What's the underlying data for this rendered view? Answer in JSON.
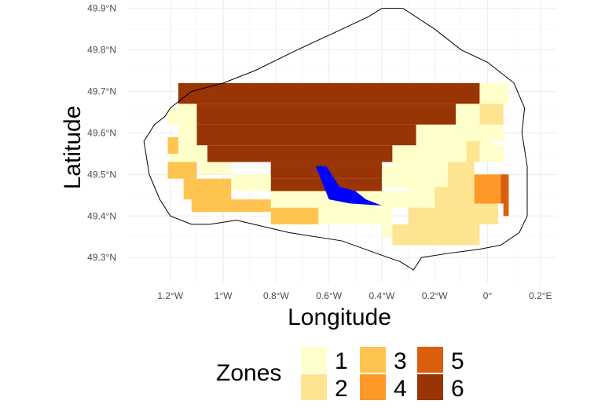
{
  "chart_data": {
    "type": "heatmap",
    "title": "",
    "xlabel": "Longitude",
    "ylabel": "Latitude",
    "xlim": [
      -1.36,
      0.26
    ],
    "ylim": [
      49.24,
      49.92
    ],
    "x_ticks": [
      {
        "value": -1.2,
        "label": "1.2°W"
      },
      {
        "value": -1.0,
        "label": "1°W"
      },
      {
        "value": -0.8,
        "label": "0.8°W"
      },
      {
        "value": -0.6,
        "label": "0.6°W"
      },
      {
        "value": -0.4,
        "label": "0.4°W"
      },
      {
        "value": -0.2,
        "label": "0.2°W"
      },
      {
        "value": 0.0,
        "label": "0°"
      },
      {
        "value": 0.2,
        "label": "0.2°E"
      }
    ],
    "y_ticks": [
      {
        "value": 49.3,
        "label": "49.3°N"
      },
      {
        "value": 49.4,
        "label": "49.4°N"
      },
      {
        "value": 49.5,
        "label": "49.5°N"
      },
      {
        "value": 49.6,
        "label": "49.6°N"
      },
      {
        "value": 49.7,
        "label": "49.7°N"
      },
      {
        "value": 49.8,
        "label": "49.8°N"
      },
      {
        "value": 49.9,
        "label": "49.9°N"
      }
    ],
    "grid": true,
    "legend": {
      "title": "Zones",
      "placement": "bottom",
      "entries": [
        {
          "zone": 1,
          "label": "1",
          "color": "#FFFFCC"
        },
        {
          "zone": 2,
          "label": "2",
          "color": "#FEE391"
        },
        {
          "zone": 3,
          "label": "3",
          "color": "#FEC44F"
        },
        {
          "zone": 4,
          "label": "4",
          "color": "#FE9929"
        },
        {
          "zone": 5,
          "label": "5",
          "color": "#D95F0E"
        },
        {
          "zone": 6,
          "label": "6",
          "color": "#993404"
        }
      ]
    },
    "zones": [
      {
        "zone": 6,
        "cells": [
          [
            -1.17,
            49.67,
            -0.03,
            49.72
          ],
          [
            -1.17,
            49.62,
            -0.12,
            49.67
          ],
          [
            -1.1,
            49.57,
            -0.27,
            49.62
          ],
          [
            -1.06,
            49.53,
            -0.36,
            49.57
          ],
          [
            -0.82,
            49.49,
            -0.4,
            49.53
          ],
          [
            -0.82,
            49.46,
            -0.4,
            49.49
          ]
        ]
      },
      {
        "zone": 1,
        "cells": [
          [
            -0.03,
            49.67,
            0.08,
            49.72
          ],
          [
            -0.12,
            49.62,
            0.0,
            49.67
          ],
          [
            -0.27,
            49.57,
            0.02,
            49.62
          ],
          [
            -0.36,
            49.52,
            -0.08,
            49.57
          ],
          [
            -0.4,
            49.47,
            -0.15,
            49.52
          ],
          [
            -1.17,
            49.57,
            -1.1,
            49.67
          ],
          [
            -1.21,
            49.62,
            -1.17,
            49.66
          ],
          [
            -1.2,
            49.53,
            -1.06,
            49.57
          ],
          [
            -1.09,
            49.5,
            -0.97,
            49.53
          ],
          [
            -0.97,
            49.46,
            -0.82,
            49.5
          ],
          [
            -0.82,
            49.42,
            -0.3,
            49.46
          ],
          [
            -0.64,
            49.38,
            -0.36,
            49.42
          ],
          [
            -0.4,
            49.35,
            -0.3,
            49.38
          ],
          [
            -0.3,
            49.4,
            -0.2,
            49.47
          ],
          [
            -0.03,
            49.53,
            0.06,
            49.57
          ],
          [
            0.02,
            49.58,
            0.06,
            49.62
          ]
        ]
      },
      {
        "zone": 2,
        "cells": [
          [
            -0.03,
            49.62,
            0.06,
            49.67
          ],
          [
            -0.08,
            49.53,
            -0.03,
            49.58
          ],
          [
            -0.15,
            49.47,
            -0.05,
            49.53
          ],
          [
            -0.2,
            49.42,
            -0.05,
            49.47
          ],
          [
            -0.3,
            49.38,
            0.04,
            49.42
          ],
          [
            -0.36,
            49.33,
            -0.03,
            49.38
          ],
          [
            -0.05,
            49.42,
            0.04,
            49.47
          ]
        ]
      },
      {
        "zone": 3,
        "cells": [
          [
            -1.21,
            49.55,
            -1.17,
            49.59
          ],
          [
            -1.21,
            49.49,
            -1.1,
            49.53
          ],
          [
            -1.15,
            49.44,
            -0.97,
            49.49
          ],
          [
            -1.12,
            49.41,
            -0.82,
            49.44
          ],
          [
            -0.82,
            49.38,
            -0.64,
            49.42
          ]
        ]
      },
      {
        "zone": 4,
        "cells": [
          [
            -0.05,
            49.43,
            0.06,
            49.5
          ]
        ]
      },
      {
        "zone": 5,
        "cells": [
          [
            0.05,
            49.43,
            0.08,
            49.5
          ],
          [
            0.06,
            49.4,
            0.08,
            49.43
          ]
        ]
      }
    ],
    "highlight_polygon": {
      "color": "#0000FF",
      "points": [
        [
          -0.65,
          49.52
        ],
        [
          -0.61,
          49.52
        ],
        [
          -0.56,
          49.47
        ],
        [
          -0.5,
          49.46
        ],
        [
          -0.46,
          49.44
        ],
        [
          -0.4,
          49.425
        ],
        [
          -0.52,
          49.43
        ],
        [
          -0.6,
          49.44
        ]
      ]
    },
    "coastline": {
      "color": "#000000",
      "points": [
        [
          -1.2,
          49.66
        ],
        [
          -1.12,
          49.7
        ],
        [
          -1.0,
          49.72
        ],
        [
          -0.88,
          49.75
        ],
        [
          -0.72,
          49.8
        ],
        [
          -0.55,
          49.85
        ],
        [
          -0.45,
          49.88
        ],
        [
          -0.4,
          49.9
        ],
        [
          -0.32,
          49.9
        ],
        [
          -0.2,
          49.85
        ],
        [
          -0.1,
          49.8
        ],
        [
          0.0,
          49.77
        ],
        [
          0.1,
          49.72
        ],
        [
          0.14,
          49.66
        ],
        [
          0.13,
          49.6
        ],
        [
          0.15,
          49.52
        ],
        [
          0.15,
          49.45
        ],
        [
          0.15,
          49.4
        ],
        [
          0.12,
          49.36
        ],
        [
          0.05,
          49.33
        ],
        [
          -0.03,
          49.32
        ],
        [
          -0.15,
          49.31
        ],
        [
          -0.25,
          49.3
        ],
        [
          -0.28,
          49.27
        ],
        [
          -0.33,
          49.29
        ],
        [
          -0.42,
          49.31
        ],
        [
          -0.55,
          49.34
        ],
        [
          -0.75,
          49.36
        ],
        [
          -0.95,
          49.39
        ],
        [
          -1.05,
          49.38
        ],
        [
          -1.12,
          49.38
        ],
        [
          -1.2,
          49.4
        ],
        [
          -1.24,
          49.44
        ],
        [
          -1.28,
          49.5
        ],
        [
          -1.3,
          49.58
        ],
        [
          -1.26,
          49.62
        ],
        [
          -1.22,
          49.64
        ],
        [
          -1.2,
          49.66
        ]
      ]
    }
  }
}
